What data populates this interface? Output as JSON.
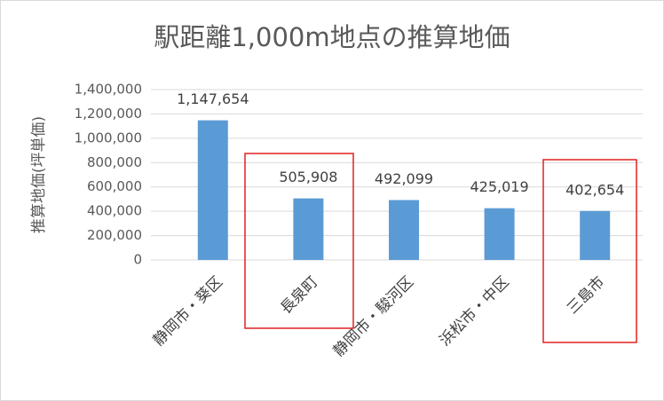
{
  "chart_data": {
    "type": "bar",
    "title": "駅距離1,000m地点の推算地価",
    "y_label": "推算地価(坪単価)",
    "categories": [
      "静岡市・葵区",
      "長泉町",
      "静岡市・駿河区",
      "浜松市・中区",
      "三島市"
    ],
    "values": [
      1147654,
      505908,
      492099,
      425019,
      402654
    ],
    "value_labels": [
      "1,147,654",
      "505,908",
      "492,099",
      "425,019",
      "402,654"
    ],
    "color": "#5b9bd5",
    "ylim": [
      0,
      1400000
    ],
    "yticks": [
      0,
      {
        "value": 200000,
        "label": "200,000"
      },
      {
        "value": 400000,
        "label": "400,000"
      },
      {
        "value": 600000,
        "label": "600,000"
      },
      {
        "value": 800000,
        "label": "800,000"
      },
      {
        "value": 1000000,
        "label": "1,000,000"
      },
      {
        "value": 1200000,
        "label": "1,200,000"
      },
      {
        "value": 1400000,
        "label": "1,400,000"
      }
    ],
    "grid": true
  }
}
